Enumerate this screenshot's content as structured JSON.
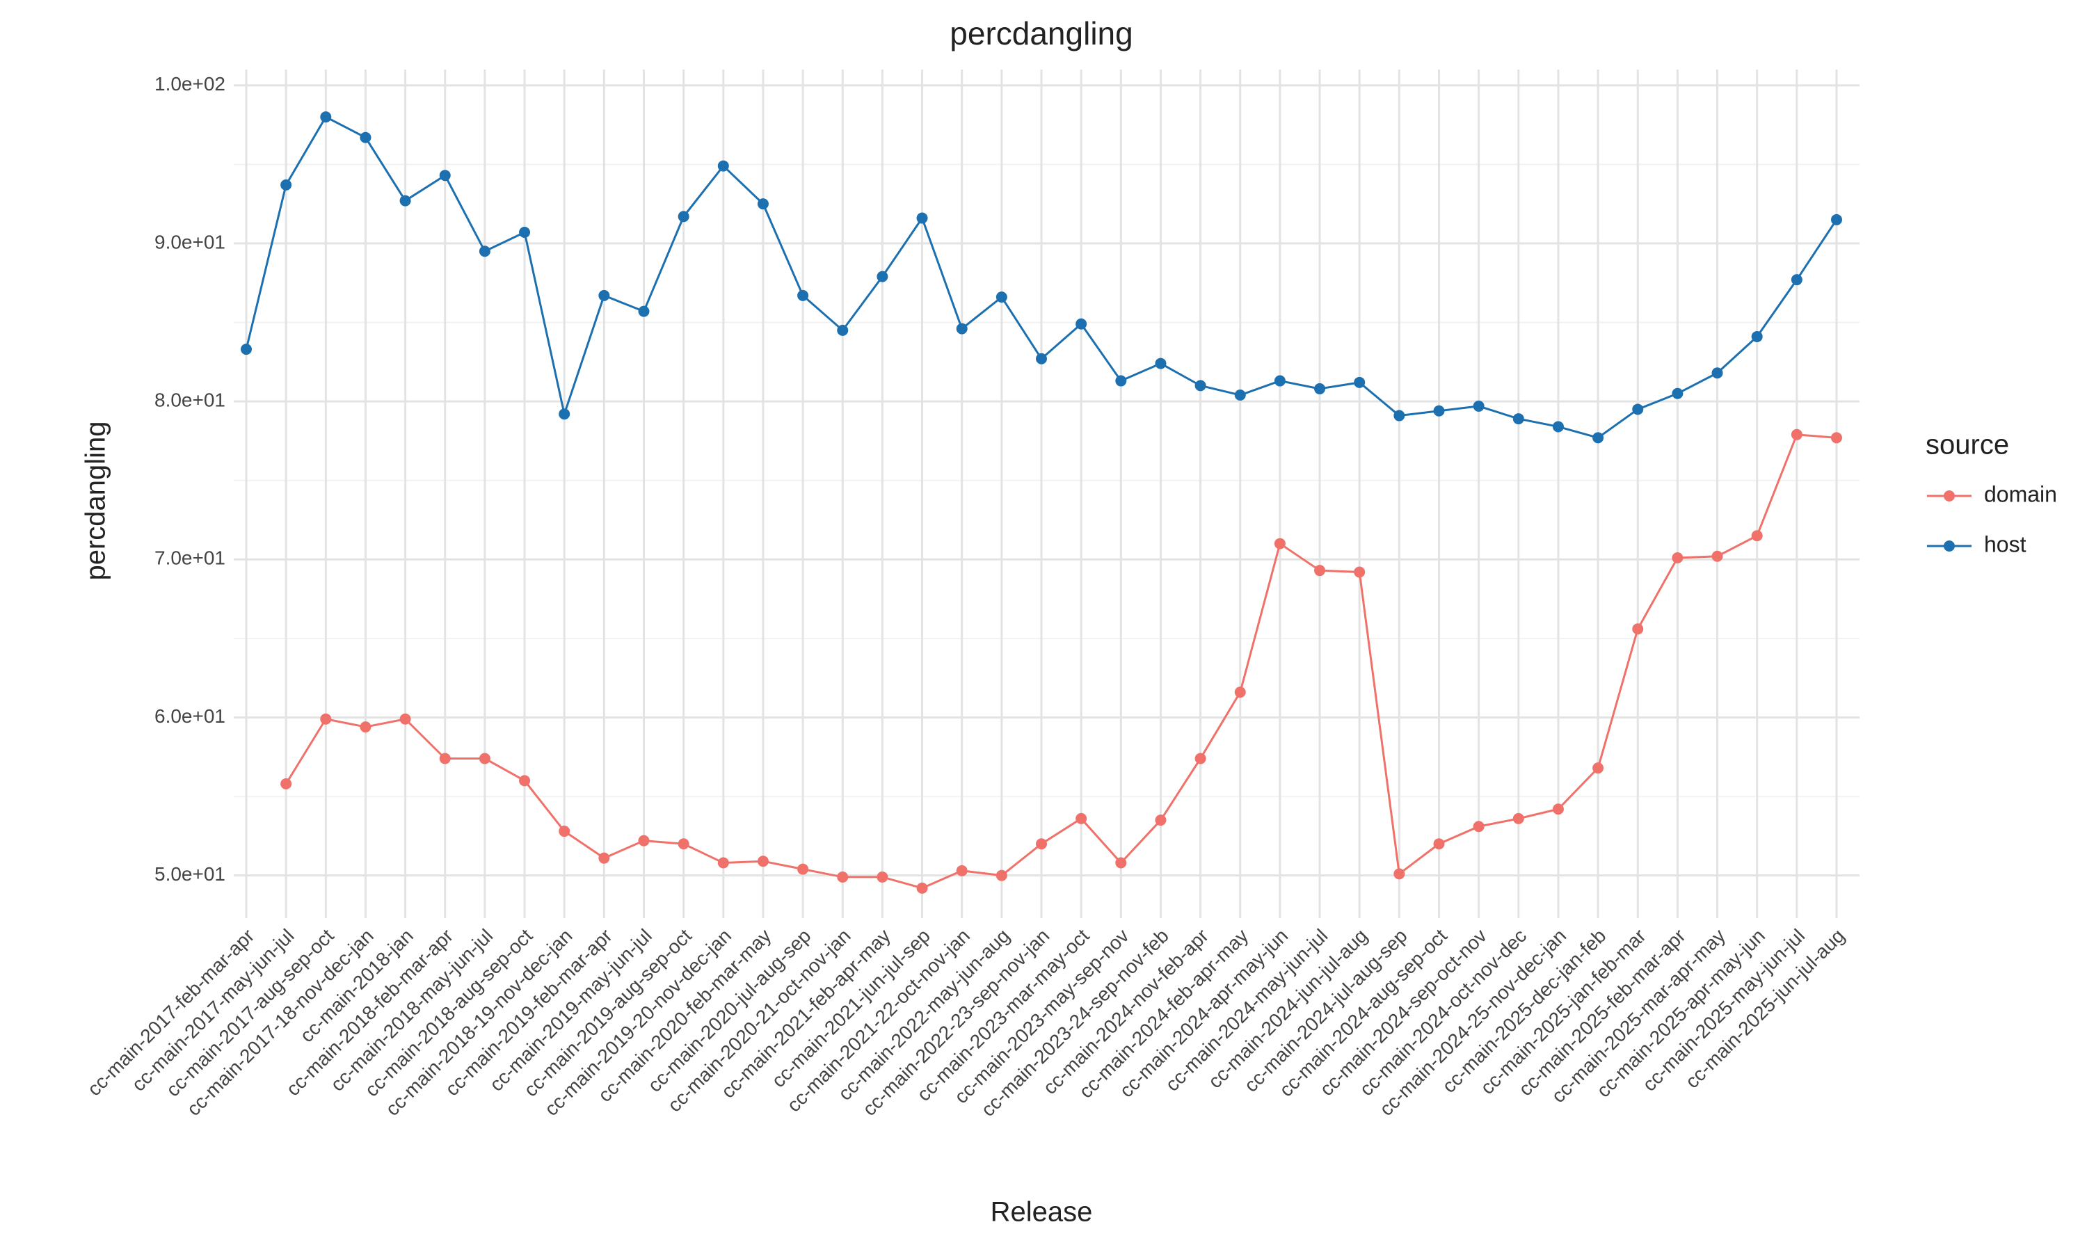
{
  "chart_data": {
    "type": "line",
    "title": "percdangling",
    "x_label": "Release",
    "y_label": "percdangling",
    "legend_title": "source",
    "legend_position": "right",
    "grid": true,
    "categories": [
      "cc-main-2017-feb-mar-apr",
      "cc-main-2017-may-jun-jul",
      "cc-main-2017-aug-sep-oct",
      "cc-main-2017-18-nov-dec-jan",
      "cc-main-2018-jan",
      "cc-main-2018-feb-mar-apr",
      "cc-main-2018-may-jun-jul",
      "cc-main-2018-aug-sep-oct",
      "cc-main-2018-19-nov-dec-jan",
      "cc-main-2019-feb-mar-apr",
      "cc-main-2019-may-jun-jul",
      "cc-main-2019-aug-sep-oct",
      "cc-main-2019-20-nov-dec-jan",
      "cc-main-2020-feb-mar-may",
      "cc-main-2020-jul-aug-sep",
      "cc-main-2020-21-oct-nov-jan",
      "cc-main-2021-feb-apr-may",
      "cc-main-2021-jun-jul-sep",
      "cc-main-2021-22-oct-nov-jan",
      "cc-main-2022-may-jun-aug",
      "cc-main-2022-23-sep-nov-jan",
      "cc-main-2023-mar-may-oct",
      "cc-main-2023-may-sep-nov",
      "cc-main-2023-24-sep-nov-feb",
      "cc-main-2024-nov-feb-apr",
      "cc-main-2024-feb-apr-may",
      "cc-main-2024-apr-may-jun",
      "cc-main-2024-may-jun-jul",
      "cc-main-2024-jun-jul-aug",
      "cc-main-2024-jul-aug-sep",
      "cc-main-2024-aug-sep-oct",
      "cc-main-2024-sep-oct-nov",
      "cc-main-2024-oct-nov-dec",
      "cc-main-2024-25-nov-dec-jan",
      "cc-main-2025-dec-jan-feb",
      "cc-main-2025-jan-feb-mar",
      "cc-main-2025-feb-mar-apr",
      "cc-main-2025-mar-apr-may",
      "cc-main-2025-apr-may-jun",
      "cc-main-2025-may-jun-jul",
      "cc-main-2025-jun-jul-aug"
    ],
    "series": [
      {
        "name": "domain",
        "color": "#f0716a",
        "values": [
          null,
          55.8,
          59.9,
          59.4,
          59.9,
          57.4,
          57.4,
          56.0,
          52.8,
          51.1,
          52.2,
          52.0,
          50.8,
          50.9,
          50.4,
          49.9,
          49.9,
          49.2,
          50.3,
          50.0,
          52.0,
          53.6,
          50.8,
          53.5,
          57.4,
          61.6,
          71.0,
          69.3,
          69.2,
          50.1,
          52.0,
          53.1,
          53.6,
          54.2,
          56.8,
          65.6,
          70.1,
          70.2,
          71.5,
          77.9,
          77.7
        ]
      },
      {
        "name": "host",
        "color": "#1c70b0",
        "values": [
          83.3,
          93.7,
          98.0,
          96.7,
          92.7,
          94.3,
          89.5,
          90.7,
          79.2,
          86.7,
          85.7,
          91.7,
          94.9,
          92.5,
          86.7,
          84.5,
          87.9,
          91.6,
          84.6,
          86.6,
          82.7,
          84.9,
          81.3,
          82.4,
          81.0,
          80.4,
          81.3,
          80.8,
          81.2,
          79.1,
          79.4,
          79.7,
          78.9,
          78.4,
          77.7,
          79.5,
          80.5,
          81.8,
          84.1,
          87.7,
          91.5
        ]
      }
    ],
    "ylim": [
      47.3,
      101
    ],
    "yticks": [
      {
        "value": 50,
        "label": "5.0e+01"
      },
      {
        "value": 60,
        "label": "6.0e+01"
      },
      {
        "value": 70,
        "label": "7.0e+01"
      },
      {
        "value": 80,
        "label": "8.0e+01"
      },
      {
        "value": 90,
        "label": "9.0e+01"
      },
      {
        "value": 100,
        "label": "1.0e+02"
      }
    ]
  }
}
